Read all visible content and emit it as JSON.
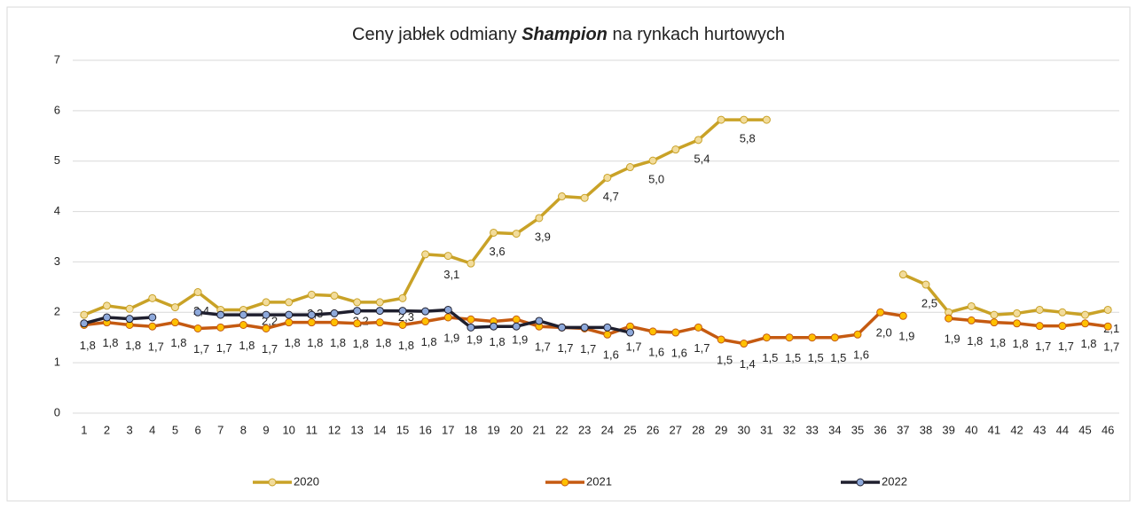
{
  "chart_data": {
    "type": "line",
    "title": [
      "Ceny jabłek odmiany",
      "Shampion",
      "na rynkach hurtowych"
    ],
    "categories": [
      1,
      2,
      3,
      4,
      5,
      6,
      7,
      8,
      9,
      10,
      11,
      12,
      13,
      14,
      15,
      16,
      17,
      18,
      19,
      20,
      21,
      22,
      23,
      24,
      25,
      26,
      27,
      28,
      29,
      30,
      31,
      32,
      33,
      34,
      35,
      36,
      37,
      38,
      39,
      40,
      41,
      42,
      43,
      44,
      45,
      46
    ],
    "ylim": [
      0,
      7
    ],
    "yticks": [
      0,
      1,
      2,
      3,
      4,
      5,
      6,
      7
    ],
    "grid": true,
    "legend": "bottom",
    "series": [
      {
        "name": "2020",
        "color": "#c9a227",
        "marker": "#f2dc9b",
        "values": [
          1.95,
          2.13,
          2.07,
          2.28,
          2.1,
          2.4,
          2.05,
          2.05,
          2.2,
          2.2,
          2.35,
          2.33,
          2.2,
          2.2,
          2.28,
          3.15,
          3.12,
          2.97,
          3.58,
          3.56,
          3.87,
          4.3,
          4.27,
          4.67,
          4.88,
          5.01,
          5.23,
          5.42,
          5.82,
          5.82,
          5.82,
          null,
          null,
          null,
          null,
          null,
          2.75,
          2.55,
          2.0,
          2.12,
          1.95,
          1.98,
          2.05,
          2.0,
          1.95,
          2.05
        ],
        "value_labels": [
          null,
          null,
          null,
          null,
          null,
          "2,4",
          null,
          null,
          "2,2",
          null,
          "2,3",
          null,
          "2,2",
          null,
          "2,3",
          null,
          "3,1",
          null,
          "3,6",
          null,
          "3,9",
          null,
          null,
          "4,7",
          null,
          "5,0",
          null,
          "5,4",
          null,
          "5,8",
          null,
          null,
          null,
          null,
          null,
          null,
          null,
          "2,5",
          null,
          null,
          null,
          null,
          null,
          null,
          null,
          "2,1"
        ]
      },
      {
        "name": "2021",
        "color": "#c55a11",
        "marker": "#ffc000",
        "values": [
          1.75,
          1.8,
          1.75,
          1.72,
          1.8,
          1.68,
          1.7,
          1.75,
          1.68,
          1.8,
          1.8,
          1.8,
          1.78,
          1.8,
          1.75,
          1.82,
          1.9,
          1.86,
          1.82,
          1.86,
          1.72,
          1.7,
          1.68,
          1.56,
          1.72,
          1.62,
          1.6,
          1.7,
          1.46,
          1.38,
          1.5,
          1.5,
          1.5,
          1.5,
          1.56,
          2.0,
          1.93,
          null,
          1.88,
          1.84,
          1.8,
          1.78,
          1.73,
          1.73,
          1.78,
          1.72
        ],
        "value_labels": [
          "1,8",
          "1,8",
          "1,8",
          "1,7",
          "1,8",
          "1,7",
          "1,7",
          "1,8",
          "1,7",
          "1,8",
          "1,8",
          "1,8",
          "1,8",
          "1,8",
          "1,8",
          "1,8",
          "1,9",
          "1,9",
          "1,8",
          "1,9",
          "1,7",
          "1,7",
          "1,7",
          "1,6",
          "1,7",
          "1,6",
          "1,6",
          "1,7",
          "1,5",
          "1,4",
          "1,5",
          "1,5",
          "1,5",
          "1,5",
          "1,6",
          "2,0",
          "1,9",
          null,
          "1,9",
          "1,8",
          "1,8",
          "1,8",
          "1,7",
          "1,7",
          "1,8",
          "1,7"
        ]
      },
      {
        "name": "2022",
        "color": "#1f1f2e",
        "marker": "#8ea9db",
        "values": [
          1.78,
          1.9,
          1.87,
          1.9,
          null,
          2.0,
          1.95,
          1.95,
          1.95,
          1.95,
          1.95,
          1.98,
          2.03,
          2.03,
          2.03,
          2.02,
          2.05,
          1.7,
          1.72,
          1.72,
          1.83,
          1.7,
          1.7,
          1.7,
          1.6,
          null,
          null,
          null,
          null,
          null,
          null,
          null,
          null,
          null,
          null,
          null,
          null,
          null,
          null,
          null,
          null,
          null,
          null,
          null,
          null,
          null
        ]
      }
    ]
  }
}
